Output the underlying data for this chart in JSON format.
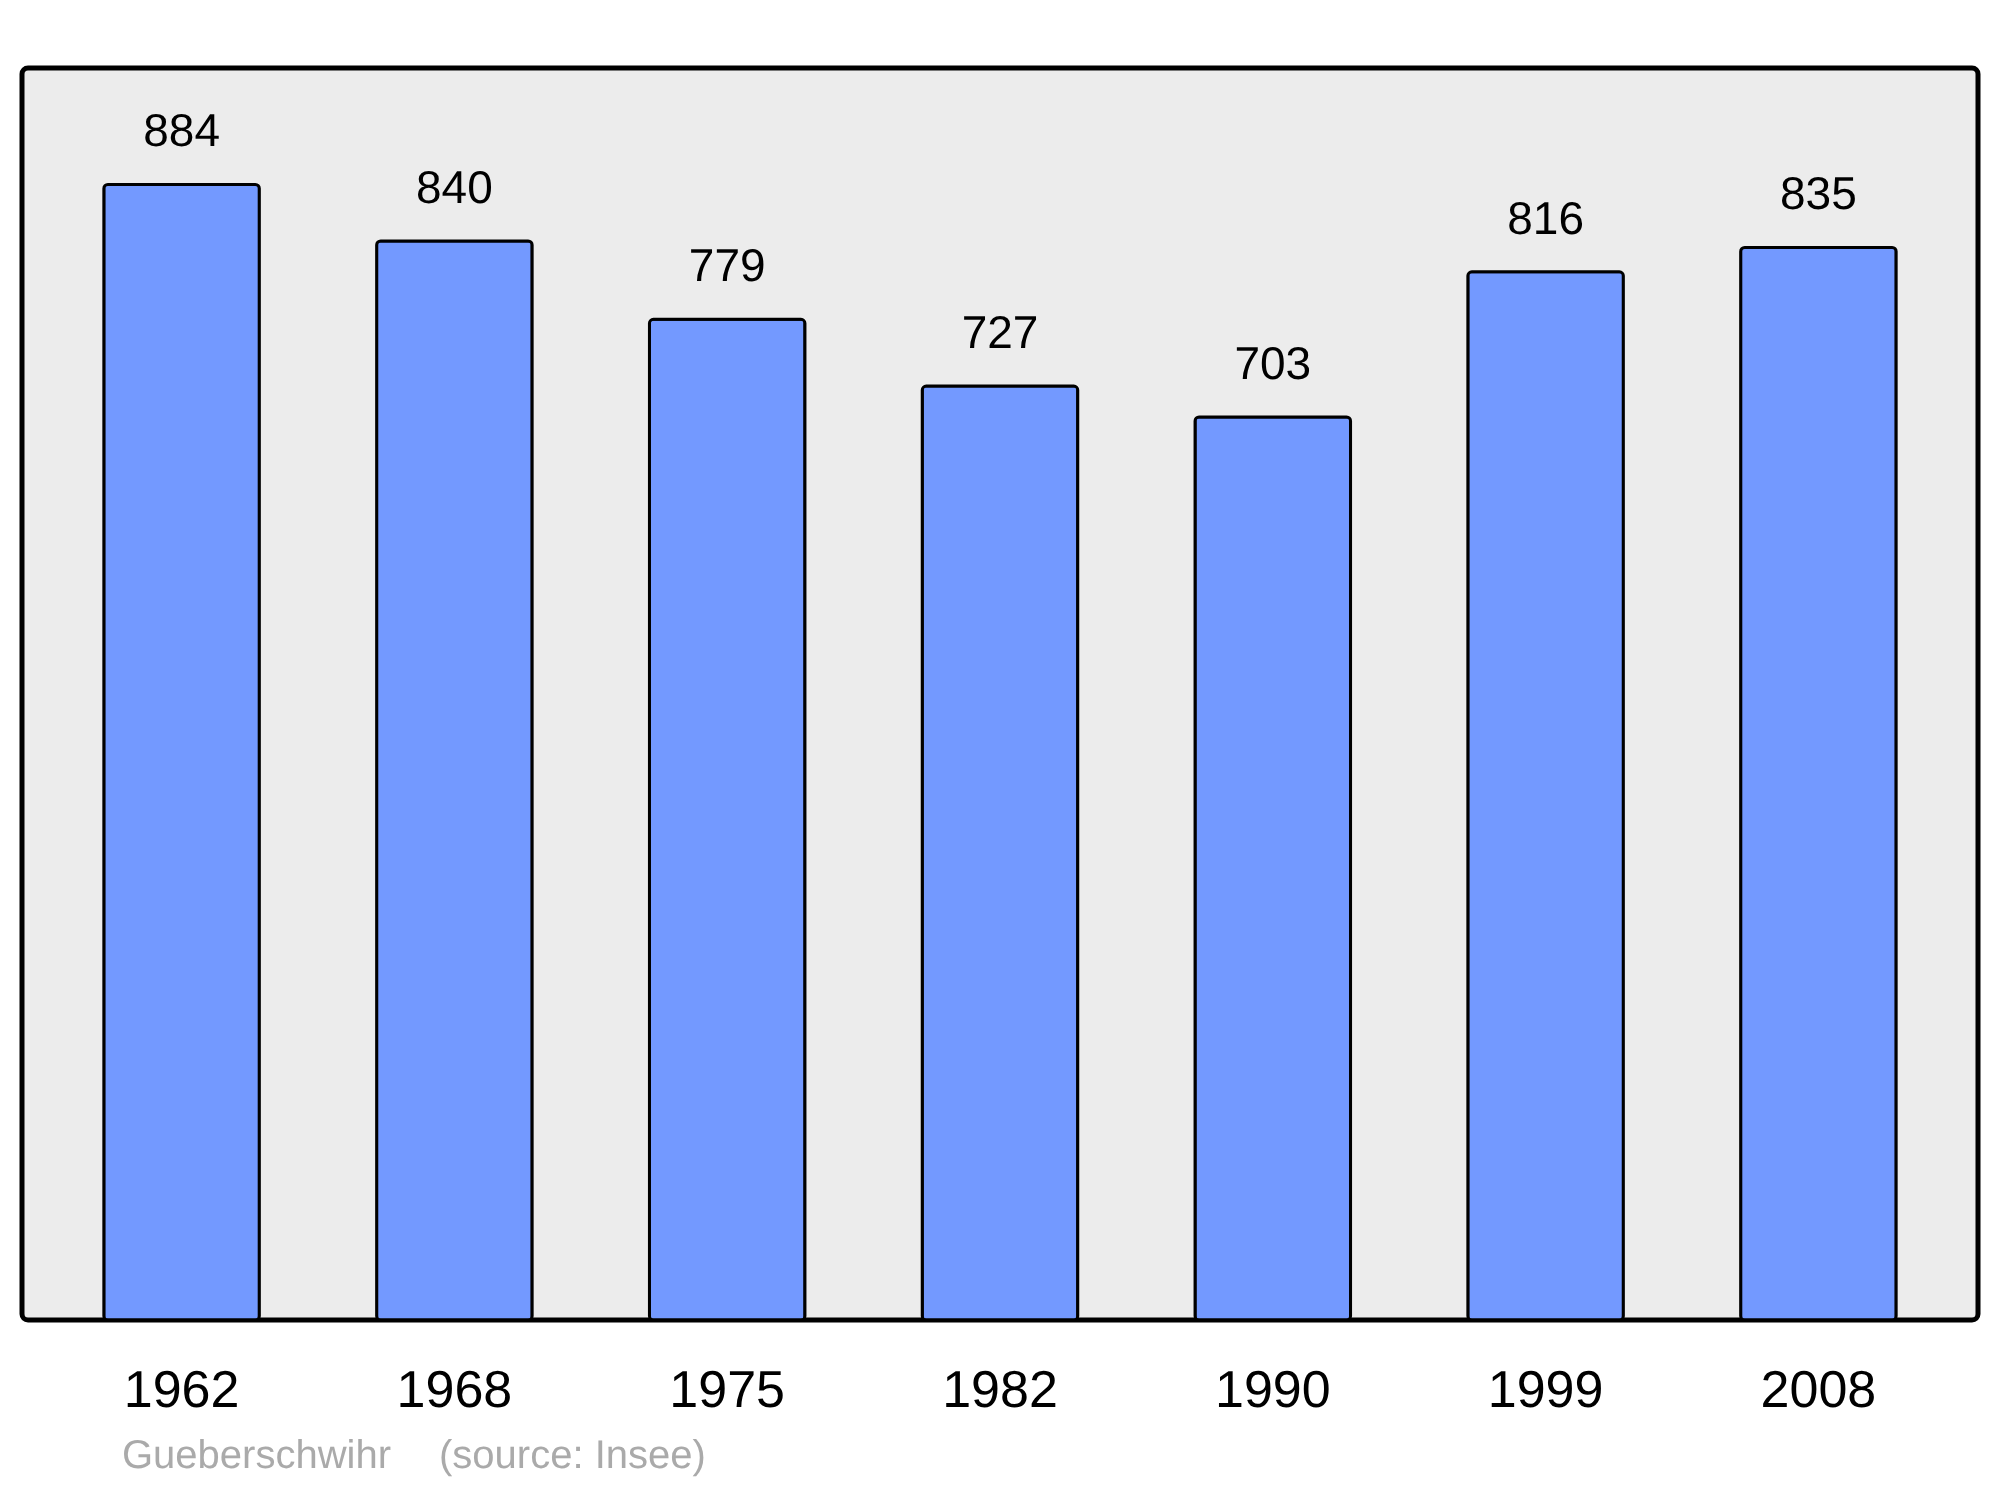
{
  "chart_data": {
    "type": "bar",
    "categories": [
      "1962",
      "1968",
      "1975",
      "1982",
      "1990",
      "1999",
      "2008"
    ],
    "values": [
      884,
      840,
      779,
      727,
      703,
      816,
      835
    ],
    "color": "#7399ff",
    "data_labels": true,
    "annotations": [
      "Gueberschwihr",
      "(source: Insee)"
    ]
  }
}
